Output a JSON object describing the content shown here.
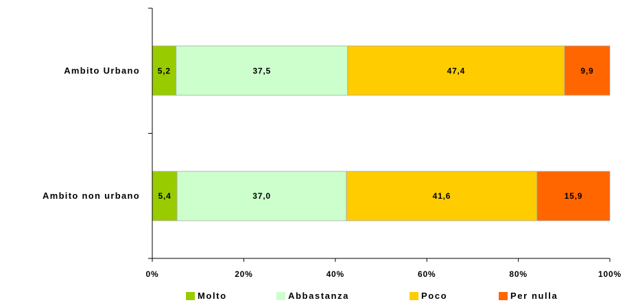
{
  "chart_data": {
    "type": "bar",
    "orientation": "horizontal",
    "stacked": "percent",
    "categories": [
      "Ambito Urbano",
      "Ambito non urbano"
    ],
    "series": [
      {
        "name": "Molto",
        "values": [
          5.2,
          5.4
        ],
        "labels": [
          "5,2",
          "5,4"
        ],
        "color": "#99cc00"
      },
      {
        "name": "Abbastanza",
        "values": [
          37.5,
          37.0
        ],
        "labels": [
          "37,5",
          "37,0"
        ],
        "color": "#ccffcc"
      },
      {
        "name": "Poco",
        "values": [
          47.4,
          41.6
        ],
        "labels": [
          "47,4",
          "41,6"
        ],
        "color": "#ffcc00"
      },
      {
        "name": "Per nulla",
        "values": [
          9.9,
          15.9
        ],
        "labels": [
          "9,9",
          "15,9"
        ],
        "color": "#ff6600"
      }
    ],
    "xticks": [
      "0%",
      "20%",
      "40%",
      "60%",
      "80%",
      "100%"
    ],
    "xlim": [
      0,
      100
    ],
    "grid": false,
    "legend_position": "bottom"
  }
}
